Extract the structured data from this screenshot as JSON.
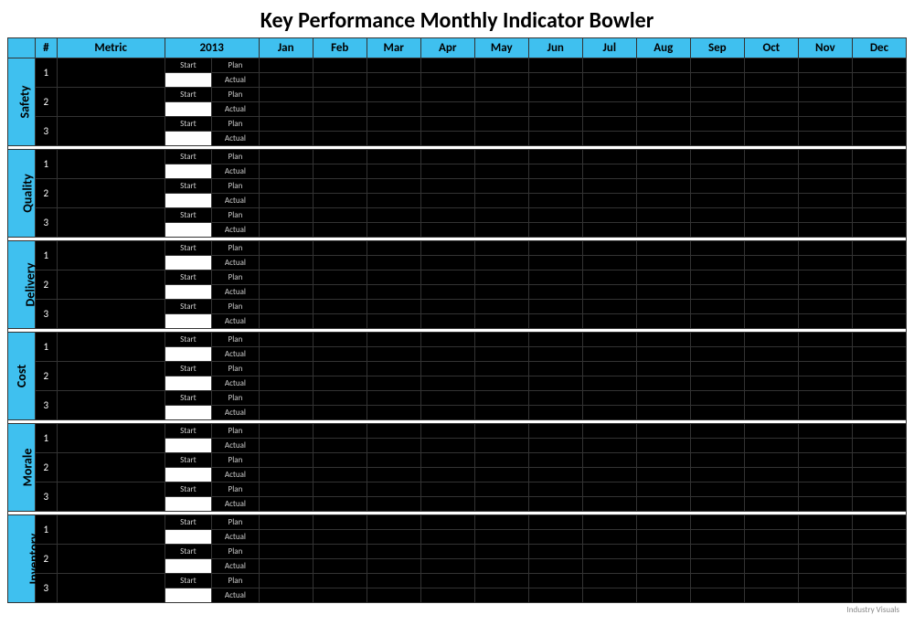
{
  "title": "Key Performance Monthly Indicator Bowler",
  "header": {
    "num": "#",
    "metric": "Metric",
    "year": "2013",
    "months": [
      "Jan",
      "Feb",
      "Mar",
      "Apr",
      "May",
      "Jun",
      "Jul",
      "Aug",
      "Sep",
      "Oct",
      "Nov",
      "Dec"
    ]
  },
  "labels": {
    "start": "Start",
    "plan": "Plan",
    "actual": "Actual"
  },
  "categories": [
    {
      "name": "Safety",
      "rows": [
        1,
        2,
        3
      ]
    },
    {
      "name": "Quality",
      "rows": [
        1,
        2,
        3
      ]
    },
    {
      "name": "Delivery",
      "rows": [
        1,
        2,
        3
      ]
    },
    {
      "name": "Cost",
      "rows": [
        1,
        2,
        3
      ]
    },
    {
      "name": "Morale",
      "rows": [
        1,
        2,
        3
      ]
    },
    {
      "name": "Inventory",
      "rows": [
        1,
        2,
        3
      ]
    }
  ],
  "colors": {
    "accent": "#3fc0ef",
    "cell_bg": "#000000",
    "cell_text": "#cccccc",
    "border": "#333333",
    "page_bg": "#ffffff",
    "input_bg": "#ffffff"
  },
  "footer": "Industry Visuals"
}
